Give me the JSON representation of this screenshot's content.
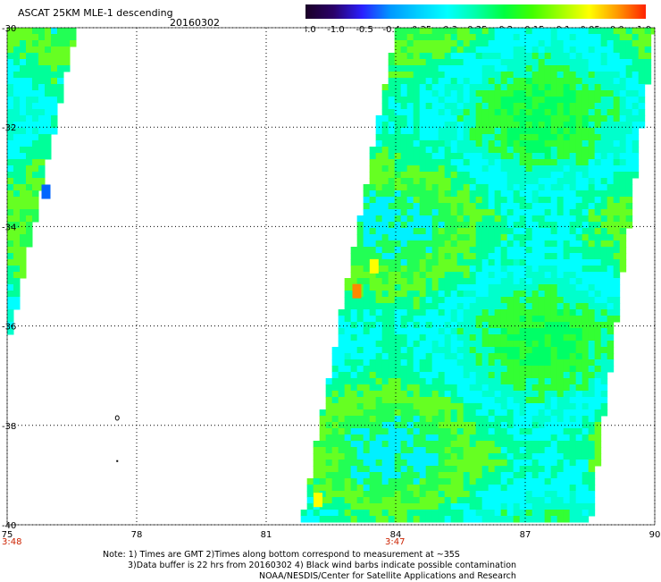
{
  "header": {
    "title": "ASCAT 25KM MLE-1 descending",
    "date": "20160302"
  },
  "colorbar": {
    "labels": [
      "-3.0",
      "-1.0",
      "-0.5",
      "-0.4",
      "-0.35",
      "-0.3",
      "-0.25",
      "-0.2",
      "-0.15",
      "-0.1",
      "-0.05",
      "0.0",
      "1.0"
    ],
    "colors": [
      "#1a0026",
      "#2a006a",
      "#2a20ff",
      "#0099ff",
      "#00d0ff",
      "#00ffff",
      "#00ffaa",
      "#00ff40",
      "#40ff00",
      "#a0ff00",
      "#ffff00",
      "#ff9900",
      "#ff2200"
    ]
  },
  "map": {
    "lon_ticks": [
      "75",
      "78",
      "81",
      "84",
      "87",
      "90"
    ],
    "lat_ticks": [
      "-30",
      "-32",
      "-34",
      "-36",
      "-38",
      "-40"
    ],
    "lon_range": [
      75,
      90
    ],
    "lat_range": [
      -40,
      -30
    ],
    "pass_times": [
      {
        "label": "3:48",
        "lon": 75
      },
      {
        "label": "3:47",
        "lon": 84
      }
    ],
    "swaths": [
      {
        "name": "west-swath",
        "polygon": [
          [
            75,
            -30
          ],
          [
            76.6,
            -30
          ],
          [
            75,
            -36.5
          ]
        ]
      },
      {
        "name": "east-swath",
        "polygon": [
          [
            84,
            -30
          ],
          [
            90,
            -30
          ],
          [
            88.5,
            -40
          ],
          [
            81.8,
            -40
          ]
        ]
      }
    ],
    "highlights": [
      {
        "lon": 83.5,
        "lat": -34.8,
        "color": "#ffff00"
      },
      {
        "lon": 83.1,
        "lat": -35.3,
        "color": "#ff8800"
      },
      {
        "lon": 82.2,
        "lat": -39.5,
        "color": "#ffff00"
      },
      {
        "lon": 75.9,
        "lat": -33.3,
        "color": "#0066ff"
      }
    ]
  },
  "notes": {
    "line1": "Note: 1) Times are GMT 2)Times along bottom correspond to measurement at ~35S",
    "line2": "3)Data buffer is 22 hrs from 20160302 4) Black wind barbs indicate possible contamination",
    "line3": "NOAA/NESDIS/Center for Satellite Applications and Research"
  }
}
